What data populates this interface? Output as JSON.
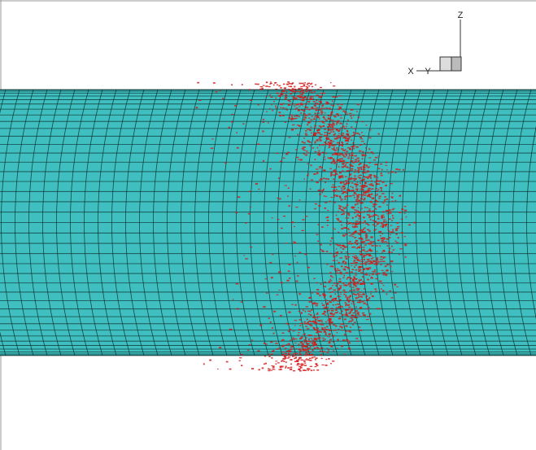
{
  "axes": {
    "z": "Z",
    "x": "X",
    "y": "Y"
  }
}
